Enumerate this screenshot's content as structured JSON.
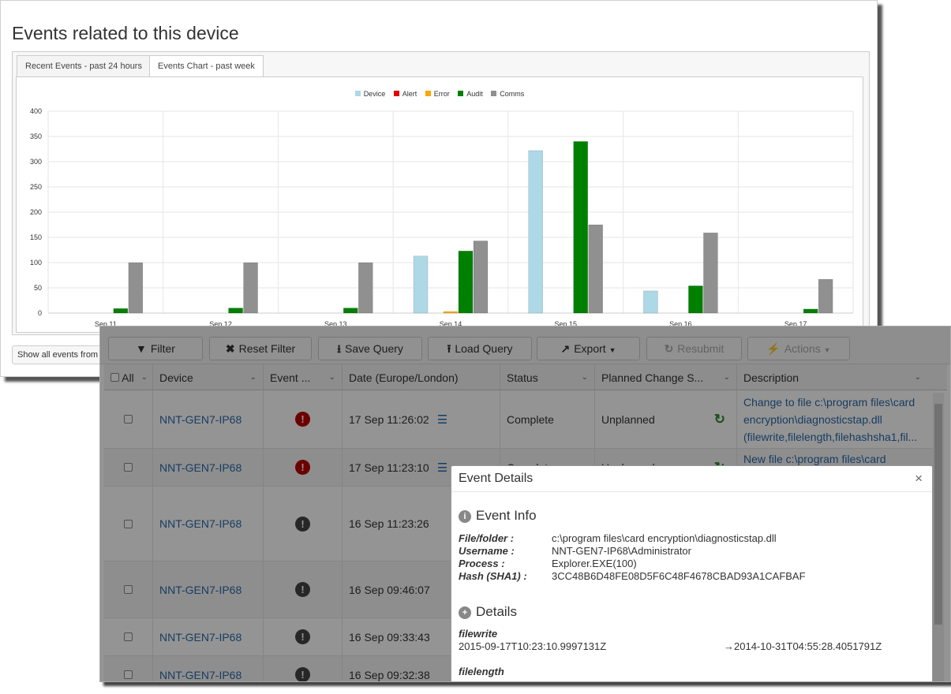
{
  "page": {
    "title": "Events related to this device"
  },
  "tabs": [
    {
      "label": "Recent Events - past 24 hours",
      "active": false
    },
    {
      "label": "Events Chart - past week",
      "active": true
    }
  ],
  "show_all_label": "Show all events from",
  "colors": {
    "Device": "#add8e6",
    "Alert": "#e00000",
    "Error": "#ffa500",
    "Audit": "#008000",
    "Comms": "#909090"
  },
  "chart_data": {
    "type": "bar",
    "categories": [
      "Sep 11",
      "Sep 12",
      "Sep 13",
      "Sep 14",
      "Sep 15",
      "Sep 16",
      "Sep 17"
    ],
    "series": [
      {
        "name": "Device",
        "values": [
          0,
          0,
          0,
          113,
          322,
          44,
          0
        ]
      },
      {
        "name": "Alert",
        "values": [
          0,
          0,
          0,
          0,
          0,
          0,
          0
        ]
      },
      {
        "name": "Error",
        "values": [
          0,
          0,
          0,
          3,
          0,
          0,
          0
        ]
      },
      {
        "name": "Audit",
        "values": [
          9,
          10,
          10,
          123,
          340,
          54,
          8
        ]
      },
      {
        "name": "Comms",
        "values": [
          100,
          100,
          100,
          143,
          175,
          159,
          67
        ]
      }
    ],
    "ylim": [
      0,
      400
    ],
    "yticks": [
      0,
      50,
      100,
      150,
      200,
      250,
      300,
      350,
      400
    ],
    "legend_position": "top-center",
    "grid": true
  },
  "toolbar": {
    "filter": "Filter",
    "reset_filter": "Reset Filter",
    "save_query": "Save Query",
    "load_query": "Load Query",
    "export": "Export",
    "resubmit": "Resubmit",
    "actions": "Actions"
  },
  "table": {
    "headers": [
      "All",
      "Device",
      "Event ...",
      "Date (Europe/London)",
      "Status",
      "Planned Change S...",
      "Description"
    ],
    "rows": [
      {
        "device": "NNT-GEN7-IP68",
        "severity": "red",
        "date": "17 Sep 11:26:02",
        "status": "Complete",
        "planned": "Unplanned",
        "description": "Change to file c:\\program files\\card encryption\\diagnosticstap.dll (filewrite,filelength,filehashsha1,fil..."
      },
      {
        "device": "NNT-GEN7-IP68",
        "severity": "red",
        "date": "17 Sep 11:23:10",
        "status": "Complete",
        "planned": "Unplanned",
        "description": "New file c:\\program files\\card"
      },
      {
        "device": "NNT-GEN7-IP68",
        "severity": "grey",
        "date": "16 Sep 11:23:26",
        "status": "",
        "planned": "",
        "description": ""
      },
      {
        "device": "NNT-GEN7-IP68",
        "severity": "grey",
        "date": "16 Sep 09:46:07",
        "status": "",
        "planned": "",
        "description": ""
      },
      {
        "device": "NNT-GEN7-IP68",
        "severity": "grey",
        "date": "16 Sep 09:33:43",
        "status": "",
        "planned": "",
        "description": ""
      },
      {
        "device": "NNT-GEN7-IP68",
        "severity": "grey",
        "date": "16 Sep 09:32:38",
        "status": "",
        "planned": "",
        "description": ""
      }
    ]
  },
  "modal": {
    "title": "Event Details",
    "close": "×",
    "event_info_title": "Event Info",
    "info": [
      {
        "k": "File/folder :",
        "v": "c:\\program files\\card encryption\\diagnosticstap.dll"
      },
      {
        "k": "Username :",
        "v": "NNT-GEN7-IP68\\Administrator"
      },
      {
        "k": "Process :",
        "v": "Explorer.EXE(100)"
      },
      {
        "k": "Hash (SHA1) :",
        "v": "3CC48B6D48FE08D5F6C48F4678CBAD93A1CAFBAF"
      }
    ],
    "details_title": "Details",
    "details": [
      {
        "field": "filewrite",
        "old": "2015-09-17T10:23:10.9997131Z",
        "new": "→2014-10-31T04:55:28.4051791Z"
      },
      {
        "field": "filelength",
        "old": "",
        "new": ""
      }
    ]
  }
}
